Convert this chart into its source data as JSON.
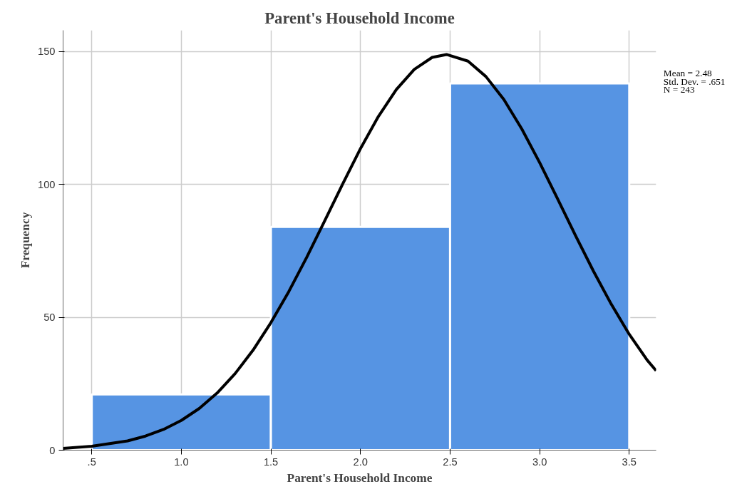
{
  "chart_data": {
    "type": "histogram",
    "title": "Parent's Household Income",
    "xlabel": "Parent's Household Income",
    "ylabel": "Frequency",
    "bins": [
      0.5,
      1.5,
      2.5,
      3.5
    ],
    "values": [
      21,
      84,
      138
    ],
    "color": "#5694e3",
    "series": [
      {
        "type": "line",
        "color": "#000000",
        "x": [
          0.34,
          0.5,
          0.7,
          0.8,
          0.9,
          1.0,
          1.1,
          1.2,
          1.3,
          1.4,
          1.5,
          1.6,
          1.7,
          1.8,
          1.9,
          2.0,
          2.1,
          2.2,
          2.3,
          2.4,
          2.48,
          2.6,
          2.7,
          2.8,
          2.9,
          3.0,
          3.1,
          3.2,
          3.3,
          3.4,
          3.5,
          3.6,
          3.65
        ],
        "values": [
          0.7,
          1.5,
          3.5,
          5.3,
          7.8,
          11.2,
          15.7,
          21.5,
          28.8,
          37.6,
          48,
          59.7,
          72.6,
          86.3,
          100.1,
          113.5,
          125.6,
          135.7,
          143.3,
          147.8,
          148.9,
          146.4,
          140.6,
          132,
          120.9,
          108.2,
          94.6,
          80.8,
          67.4,
          54.9,
          43.6,
          33.9,
          29.9
        ]
      }
    ],
    "xlim": [
      0.34,
      3.65
    ],
    "ylim": [
      0,
      158
    ],
    "xticks": [
      {
        "value": 0.5,
        "label": ".5"
      },
      {
        "value": 1.0,
        "label": "1.0"
      },
      {
        "value": 1.5,
        "label": "1.5"
      },
      {
        "value": 2.0,
        "label": "2.0"
      },
      {
        "value": 2.5,
        "label": "2.5"
      },
      {
        "value": 3.0,
        "label": "3.0"
      },
      {
        "value": 3.5,
        "label": "3.5"
      }
    ],
    "yticks": [
      0,
      50,
      100,
      150
    ],
    "grid": true,
    "line_style": "solid",
    "marker": "none",
    "annotations": [
      "Mean = 2.48",
      "Std. Dev. = .651",
      "N = 243"
    ]
  }
}
